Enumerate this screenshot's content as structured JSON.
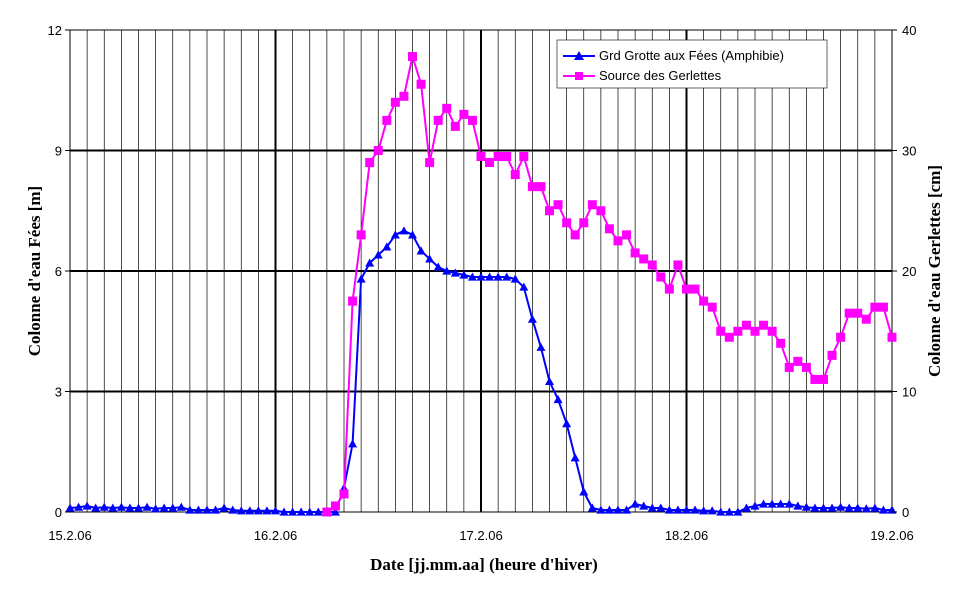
{
  "chart_data": {
    "type": "line",
    "title": "",
    "xlabel": "Date [jj.mm.aa] (heure d'hiver)",
    "ylabel_left": "Colonne d'eau Fées [m]",
    "ylabel_right": "Colonne d'eau Gerlettes [cm]",
    "x_tick_labels": [
      "15.2.06",
      "16.2.06",
      "17.2.06",
      "18.2.06",
      "19.2.06"
    ],
    "x_unit": "days since 15.2.06 00:00",
    "xlim": [
      0,
      4
    ],
    "left_axis": {
      "ylim": [
        0,
        12
      ],
      "ticks": [
        0,
        3,
        6,
        9,
        12
      ]
    },
    "right_axis": {
      "ylim": [
        0,
        40
      ],
      "ticks": [
        0,
        10,
        20,
        30,
        40
      ]
    },
    "grid": {
      "major_x": true,
      "minor_x_step_days": 0.0833,
      "major_y": true
    },
    "legend_position": "top-right",
    "series": [
      {
        "name": "Grd Grotte aux Fées (Amphibie)",
        "axis": "left",
        "color": "#0000ff",
        "marker": "triangle",
        "x": [
          0.0,
          0.0417,
          0.0833,
          0.125,
          0.1667,
          0.2083,
          0.25,
          0.2917,
          0.3333,
          0.375,
          0.4167,
          0.4583,
          0.5,
          0.5417,
          0.5833,
          0.625,
          0.6667,
          0.7083,
          0.75,
          0.7917,
          0.8333,
          0.875,
          0.9167,
          0.9583,
          1.0,
          1.0417,
          1.0833,
          1.125,
          1.1667,
          1.2083,
          1.25,
          1.2917,
          1.3333,
          1.375,
          1.4167,
          1.4583,
          1.5,
          1.5417,
          1.5833,
          1.625,
          1.6667,
          1.7083,
          1.75,
          1.7917,
          1.8333,
          1.875,
          1.9167,
          1.9583,
          2.0,
          2.0417,
          2.0833,
          2.125,
          2.1667,
          2.2083,
          2.25,
          2.2917,
          2.3333,
          2.375,
          2.4167,
          2.4583,
          2.5,
          2.5417,
          2.5833,
          2.625,
          2.6667,
          2.7083,
          2.75,
          2.7917,
          2.8333,
          2.875,
          2.9167,
          2.9583,
          3.0,
          3.0417,
          3.0833,
          3.125,
          3.1667,
          3.2083,
          3.25,
          3.2917,
          3.3333,
          3.375,
          3.4167,
          3.4583,
          3.5,
          3.5417,
          3.5833,
          3.625,
          3.6667,
          3.7083,
          3.75,
          3.7917,
          3.8333,
          3.875,
          3.9167,
          3.9583,
          4.0
        ],
        "y": [
          0.1,
          0.12,
          0.15,
          0.1,
          0.12,
          0.1,
          0.12,
          0.1,
          0.1,
          0.12,
          0.08,
          0.1,
          0.1,
          0.12,
          0.05,
          0.05,
          0.05,
          0.05,
          0.1,
          0.05,
          0.03,
          0.03,
          0.03,
          0.03,
          0.03,
          0.0,
          0.0,
          0.0,
          0.0,
          0.0,
          0.0,
          0.0,
          0.6,
          1.7,
          5.8,
          6.2,
          6.4,
          6.6,
          6.9,
          7.0,
          6.9,
          6.5,
          6.3,
          6.1,
          6.0,
          5.95,
          5.9,
          5.85,
          5.85,
          5.85,
          5.85,
          5.85,
          5.8,
          5.6,
          4.8,
          4.1,
          3.25,
          2.8,
          2.2,
          1.35,
          0.5,
          0.1,
          0.05,
          0.05,
          0.05,
          0.05,
          0.2,
          0.15,
          0.1,
          0.1,
          0.05,
          0.05,
          0.05,
          0.05,
          0.03,
          0.03,
          0.0,
          0.0,
          0.0,
          0.1,
          0.15,
          0.2,
          0.2,
          0.2,
          0.2,
          0.15,
          0.12,
          0.1,
          0.1,
          0.1,
          0.12,
          0.1,
          0.1,
          0.08,
          0.1,
          0.05,
          0.05
        ]
      },
      {
        "name": "Source des Gerlettes",
        "axis": "right",
        "color": "#ff00ff",
        "marker": "square",
        "x": [
          1.25,
          1.2917,
          1.3333,
          1.375,
          1.4167,
          1.4583,
          1.5,
          1.5417,
          1.5833,
          1.625,
          1.6667,
          1.7083,
          1.75,
          1.7917,
          1.8333,
          1.875,
          1.9167,
          1.9583,
          2.0,
          2.0417,
          2.0833,
          2.125,
          2.1667,
          2.2083,
          2.25,
          2.2917,
          2.3333,
          2.375,
          2.4167,
          2.4583,
          2.5,
          2.5417,
          2.5833,
          2.625,
          2.6667,
          2.7083,
          2.75,
          2.7917,
          2.8333,
          2.875,
          2.9167,
          2.9583,
          3.0,
          3.0417,
          3.0833,
          3.125,
          3.1667,
          3.2083,
          3.25,
          3.2917,
          3.3333,
          3.375,
          3.4167,
          3.4583,
          3.5,
          3.5417,
          3.5833,
          3.625,
          3.6667,
          3.7083,
          3.75,
          3.7917,
          3.8333,
          3.875,
          3.9167,
          3.9583,
          4.0
        ],
        "y": [
          0,
          0.5,
          1.5,
          17.5,
          23.0,
          29.0,
          30.0,
          32.5,
          34.0,
          34.5,
          37.8,
          35.5,
          29.0,
          32.5,
          33.5,
          32.0,
          33.0,
          32.5,
          29.5,
          29.0,
          29.5,
          29.5,
          28.0,
          29.5,
          27.0,
          27.0,
          25.0,
          25.5,
          24.0,
          23.0,
          24.0,
          25.5,
          25.0,
          23.5,
          22.5,
          23.0,
          21.5,
          21.0,
          20.5,
          19.5,
          18.5,
          20.5,
          18.5,
          18.5,
          17.5,
          17.0,
          15.0,
          14.5,
          15.0,
          15.5,
          15.0,
          15.5,
          15.0,
          14.0,
          12.0,
          12.5,
          12.0,
          11.0,
          11.0,
          13.0,
          14.5,
          16.5,
          16.5,
          16.0,
          17.0,
          17.0,
          14.5
        ]
      }
    ]
  }
}
